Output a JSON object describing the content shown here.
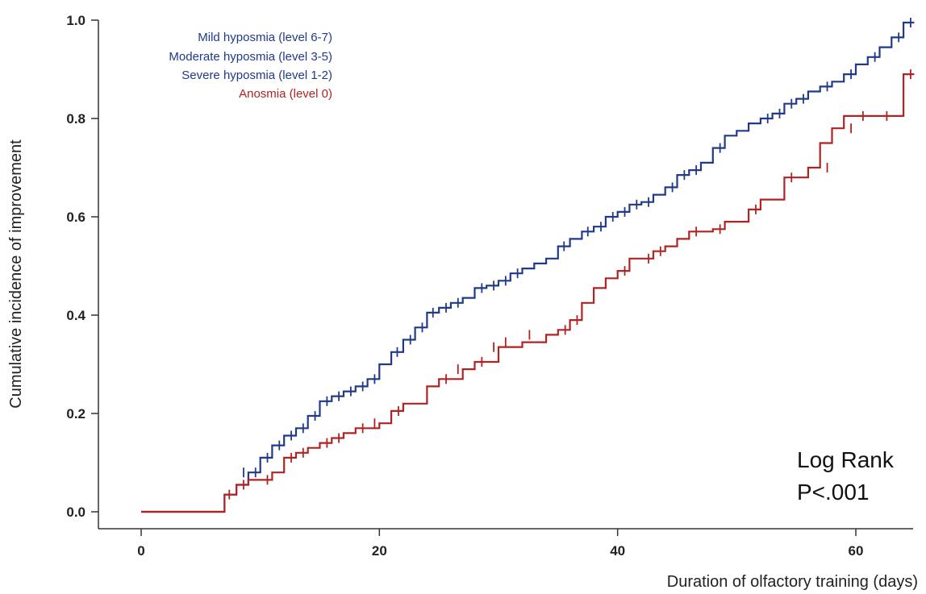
{
  "colors": {
    "blue": "#1f3a8a",
    "red": "#b22222",
    "axis": "#333333"
  },
  "chart_data": {
    "type": "line",
    "step": true,
    "xlabel": "Duration of  olfactory training (days)",
    "ylabel": "Cumulative  incidence of  improvement",
    "xlim": [
      0,
      65
    ],
    "ylim": [
      0,
      1.0
    ],
    "xticks": [
      0,
      20,
      40,
      60
    ],
    "yticks": [
      0.0,
      0.2,
      0.4,
      0.6,
      0.8,
      1.0
    ],
    "ytick_labels": [
      "0.0",
      "0.2",
      "0.4",
      "0.6",
      "0.8",
      "1.0"
    ],
    "xtick_labels": [
      "0",
      "20",
      "40",
      "60"
    ],
    "grid": false,
    "legend_position": "top-left",
    "legend": [
      {
        "text": "Mild hyposmia (level 6-7)",
        "color": "#1f3a8a"
      },
      {
        "text": "Moderate hyposmia (level 3-5)",
        "color": "#1f3a8a"
      },
      {
        "text": "Severe hyposmia (level 1-2)",
        "color": "#1f3a8a"
      },
      {
        "text": "Anosmia (level 0)",
        "color": "#b22222"
      }
    ],
    "annotation": [
      "Log Rank",
      "P<.001"
    ],
    "series": [
      {
        "color": "#1f3a8a",
        "x": [
          0,
          7,
          8,
          9,
          10,
          11,
          12,
          13,
          14,
          15,
          16,
          17,
          18,
          19,
          20,
          21,
          22,
          23,
          24,
          25,
          26,
          27,
          28,
          29,
          30,
          31,
          32,
          33,
          34,
          35,
          36,
          37,
          38,
          39,
          40,
          41,
          42,
          43,
          44,
          45,
          46,
          47,
          48,
          49,
          50,
          51,
          52,
          53,
          54,
          55,
          56,
          57,
          58,
          59,
          60,
          61,
          62,
          63,
          64
        ],
        "y": [
          0,
          0.035,
          0.055,
          0.08,
          0.11,
          0.135,
          0.155,
          0.17,
          0.195,
          0.225,
          0.235,
          0.245,
          0.255,
          0.27,
          0.3,
          0.325,
          0.35,
          0.375,
          0.405,
          0.415,
          0.425,
          0.435,
          0.455,
          0.46,
          0.47,
          0.485,
          0.495,
          0.505,
          0.515,
          0.54,
          0.555,
          0.57,
          0.58,
          0.6,
          0.61,
          0.625,
          0.63,
          0.645,
          0.66,
          0.685,
          0.695,
          0.71,
          0.74,
          0.765,
          0.775,
          0.79,
          0.8,
          0.81,
          0.83,
          0.84,
          0.855,
          0.865,
          0.875,
          0.89,
          0.91,
          0.925,
          0.945,
          0.965,
          0.995
        ],
        "censored_x": [
          8.6,
          9.6,
          10.6,
          11.6,
          12.6,
          13.6,
          14.6,
          15.6,
          16.6,
          17.6,
          18.6,
          19.6,
          21.5,
          22.6,
          23.6,
          24.5,
          25.6,
          26.6,
          28.6,
          29.6,
          30.6,
          31.6,
          35.5,
          37.5,
          38.6,
          39.6,
          40.6,
          41.6,
          42.6,
          44.6,
          45.6,
          46.6,
          48.6,
          52.6,
          53.6,
          54.6,
          55.6,
          57.6,
          59.6,
          61.6,
          63.6,
          64.6
        ],
        "censored_y": [
          0.08,
          0.08,
          0.11,
          0.135,
          0.155,
          0.17,
          0.195,
          0.225,
          0.235,
          0.245,
          0.255,
          0.27,
          0.325,
          0.35,
          0.375,
          0.405,
          0.415,
          0.425,
          0.455,
          0.46,
          0.47,
          0.485,
          0.54,
          0.57,
          0.58,
          0.6,
          0.61,
          0.625,
          0.63,
          0.66,
          0.685,
          0.695,
          0.74,
          0.8,
          0.81,
          0.83,
          0.84,
          0.865,
          0.89,
          0.925,
          0.965,
          0.995
        ]
      },
      {
        "color": "#b22222",
        "x": [
          0,
          7,
          8,
          9,
          11,
          12,
          13,
          14,
          15,
          16,
          17,
          18,
          20,
          21,
          22,
          24,
          25,
          27,
          28,
          30,
          32,
          34,
          35,
          36,
          37,
          38,
          39,
          40,
          41,
          43,
          44,
          45,
          46,
          48,
          49,
          51,
          52,
          54,
          56,
          57,
          58,
          59,
          61,
          62,
          64
        ],
        "y": [
          0,
          0.035,
          0.055,
          0.065,
          0.08,
          0.11,
          0.12,
          0.13,
          0.14,
          0.15,
          0.16,
          0.17,
          0.18,
          0.205,
          0.22,
          0.255,
          0.27,
          0.29,
          0.305,
          0.335,
          0.345,
          0.36,
          0.37,
          0.39,
          0.425,
          0.455,
          0.475,
          0.49,
          0.515,
          0.53,
          0.54,
          0.555,
          0.57,
          0.575,
          0.59,
          0.615,
          0.635,
          0.68,
          0.7,
          0.75,
          0.78,
          0.805,
          0.805,
          0.805,
          0.89
        ],
        "censored_x": [
          7.4,
          8.6,
          10.6,
          12.6,
          13.6,
          15.6,
          16.6,
          18.6,
          19.6,
          21.6,
          25.6,
          26.6,
          28.6,
          29.6,
          30.6,
          32.6,
          35.6,
          36.6,
          40.6,
          42.6,
          43.6,
          46.6,
          48.6,
          51.6,
          54.6,
          57.6,
          59.6,
          60.6,
          62.6,
          64.6
        ],
        "censored_y": [
          0.035,
          0.055,
          0.065,
          0.11,
          0.12,
          0.14,
          0.15,
          0.17,
          0.18,
          0.205,
          0.27,
          0.29,
          0.305,
          0.335,
          0.345,
          0.36,
          0.37,
          0.39,
          0.49,
          0.515,
          0.53,
          0.57,
          0.575,
          0.615,
          0.68,
          0.7,
          0.78,
          0.805,
          0.805,
          0.89
        ]
      }
    ]
  }
}
